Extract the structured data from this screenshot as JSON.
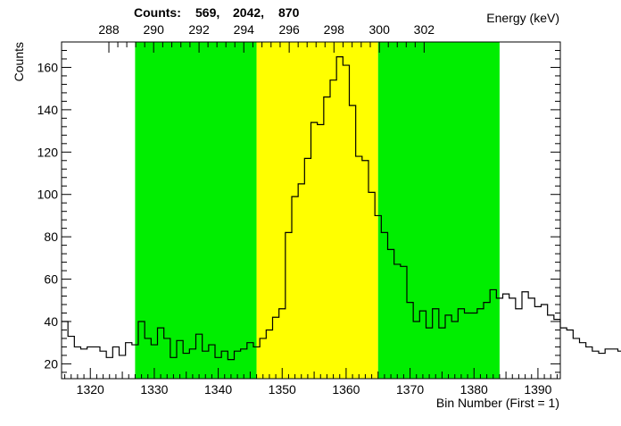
{
  "chart_data": {
    "type": "histogram",
    "top_label": "Counts:",
    "region_counts_text": [
      "569,",
      "2042,",
      "870"
    ],
    "ylabel": "Counts",
    "xlabel": "Bin Number (First = 1)",
    "x2label": "Energy (keV)",
    "xlim": [
      1315.5,
      1393.5
    ],
    "ylim": [
      13,
      172
    ],
    "x_ticks": [
      1320,
      1330,
      1340,
      1350,
      1360,
      1370,
      1380,
      1390
    ],
    "y_ticks": [
      20,
      40,
      60,
      80,
      100,
      120,
      140,
      160
    ],
    "energy_ticks": [
      {
        "energy": "288",
        "bin": 1322.9
      },
      {
        "energy": "290",
        "bin": 1329.9
      },
      {
        "energy": "292",
        "bin": 1337.0
      },
      {
        "energy": "294",
        "bin": 1344.0
      },
      {
        "energy": "296",
        "bin": 1351.1
      },
      {
        "energy": "298",
        "bin": 1358.1
      },
      {
        "energy": "300",
        "bin": 1365.2
      },
      {
        "energy": "302",
        "bin": 1372.2
      }
    ],
    "regions": [
      {
        "name": "left background",
        "color": "#00ee00",
        "x_start": 1327,
        "x_end": 1346
      },
      {
        "name": "peak",
        "color": "#ffff00",
        "x_start": 1346,
        "x_end": 1365
      },
      {
        "name": "right background",
        "color": "#00ee00",
        "x_start": 1365,
        "x_end": 1384
      }
    ],
    "bin_start": 1315.5,
    "bin_width": 1,
    "values": [
      40,
      33,
      28,
      27,
      28,
      28,
      26,
      23,
      28,
      24,
      30,
      29,
      40,
      32,
      29,
      37,
      32,
      23,
      31,
      25,
      27,
      34,
      26,
      29,
      23,
      26,
      22,
      26,
      27,
      30,
      28,
      32,
      36,
      42,
      46,
      82,
      99,
      105,
      117,
      134,
      133,
      146,
      154,
      165,
      161,
      142,
      118,
      116,
      101,
      90,
      82,
      74,
      67,
      66,
      49,
      40,
      45,
      37,
      46,
      37,
      43,
      40,
      46,
      44,
      44,
      46,
      49,
      55,
      51,
      53,
      51,
      46,
      54,
      51,
      47,
      48,
      43,
      41,
      37,
      36,
      32,
      30,
      28,
      26,
      25,
      27,
      27,
      26,
      25
    ]
  }
}
